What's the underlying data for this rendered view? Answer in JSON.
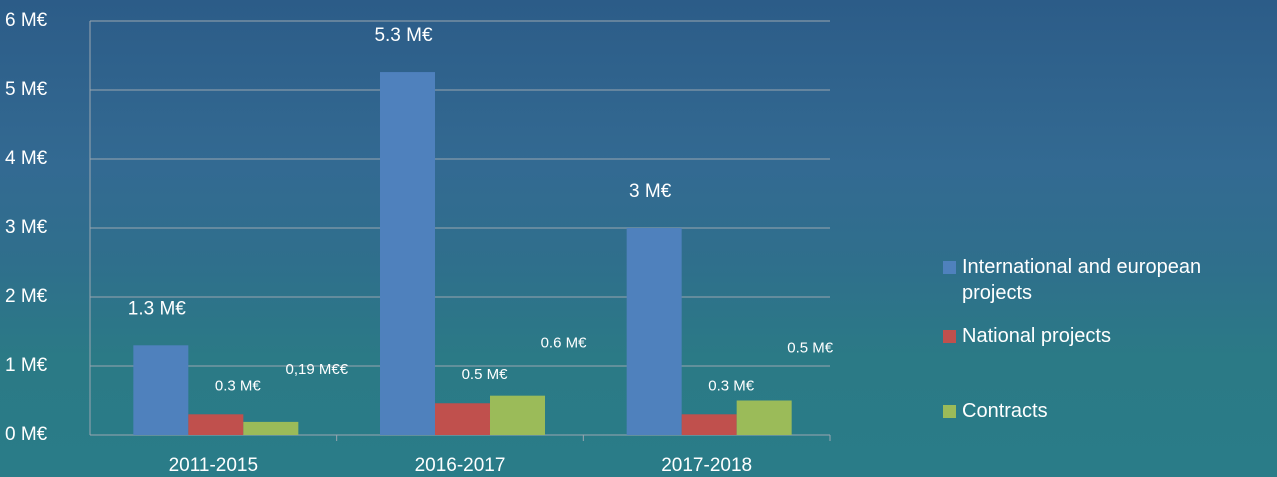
{
  "chart_data": {
    "type": "bar",
    "categories": [
      "2011-2015",
      "2016-2017",
      "2017-2018"
    ],
    "series": [
      {
        "name": "International and european projects",
        "color": "#4f81bd",
        "values": [
          1.3,
          5.26,
          3.0
        ],
        "value_labels": [
          "1.3 M€",
          "5.3 M€",
          "3 M€"
        ]
      },
      {
        "name": "National projects",
        "color": "#c0504d",
        "values": [
          0.3,
          0.46,
          0.3
        ],
        "value_labels": [
          "0.3 M€",
          "0.5 M€",
          "0.3 M€"
        ]
      },
      {
        "name": "Contracts",
        "color": "#9bbb59",
        "values": [
          0.19,
          0.57,
          0.5
        ],
        "value_labels": [
          "0,19 M€€",
          "0.6 M€",
          "0.5 M€"
        ]
      }
    ],
    "ylim": [
      0,
      6
    ],
    "yticks": [
      {
        "value": 0,
        "label": "0 M€"
      },
      {
        "value": 1,
        "label": "1 M€"
      },
      {
        "value": 2,
        "label": "2 M€"
      },
      {
        "value": 3,
        "label": "3 M€"
      },
      {
        "value": 4,
        "label": "4 M€"
      },
      {
        "value": 5,
        "label": "5 M€"
      },
      {
        "value": 6,
        "label": "6 M€"
      }
    ],
    "grid": true,
    "legend": "right"
  }
}
